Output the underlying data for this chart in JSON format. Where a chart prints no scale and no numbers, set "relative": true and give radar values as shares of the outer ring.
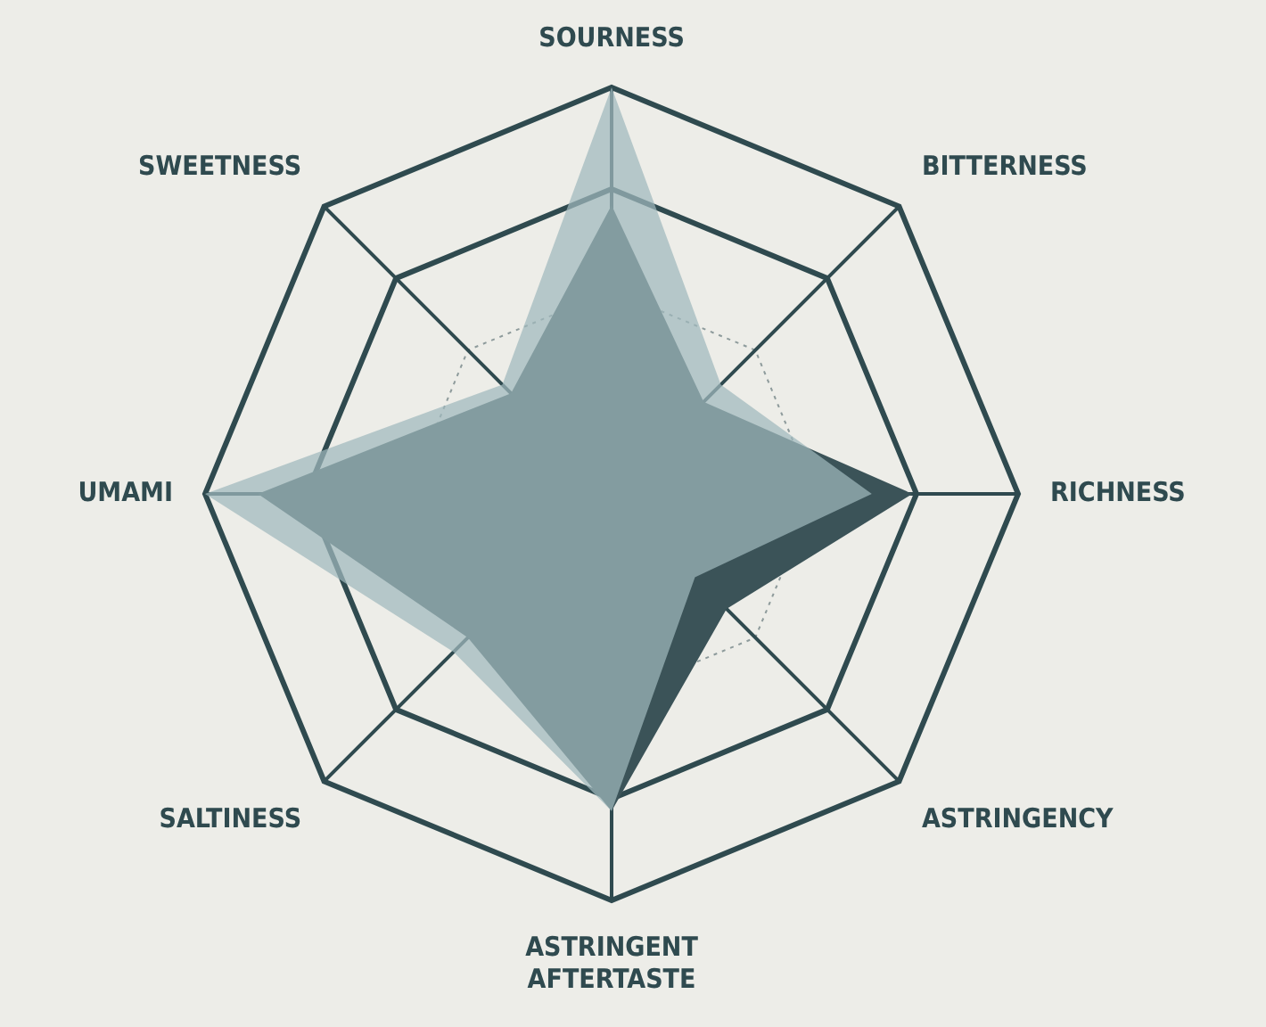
{
  "chart_data": {
    "type": "radar",
    "relative": true,
    "categories": [
      "SOURNESS",
      "BITTERNESS",
      "RICHNESS",
      "ASTRINGENCY",
      "ASTRINGENT\nAFTERTASTE",
      "SALTINESS",
      "UMAMI",
      "SWEETNESS"
    ],
    "series": [
      {
        "color": "#9fb8bd",
        "values": [
          1.0,
          0.38,
          0.64,
          0.29,
          0.78,
          0.55,
          1.0,
          0.38
        ]
      },
      {
        "color": "#3b5358",
        "values": [
          0.71,
          0.32,
          0.74,
          0.4,
          0.78,
          0.5,
          0.87,
          0.35
        ]
      }
    ],
    "legend": false
  }
}
